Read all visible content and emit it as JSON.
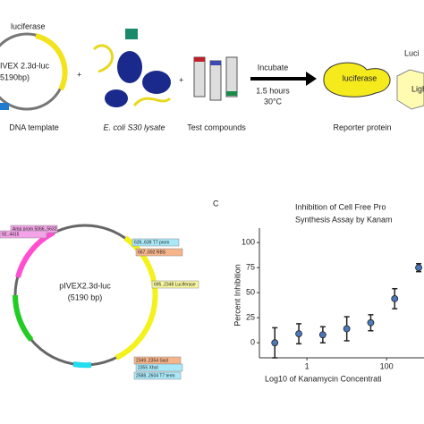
{
  "schematic": {
    "dna_label": "luciferase",
    "plasmid_name": "IVEX 2.3d-luc",
    "plasmid_size": "5190bp)",
    "dna_caption": "DNA template",
    "lysate_caption": "E. coli S30 lysate",
    "compounds_caption": "Test compounds",
    "step": "Incubate",
    "time": "1.5 hours",
    "temp": "30°C",
    "product": "luciferase",
    "product_caption": "Reporter protein",
    "substrate": "Luci",
    "light": "Ligh"
  },
  "plasmid_map": {
    "name": "pIVEX2.3d-luc",
    "size": "(5190 bp)",
    "features": [
      "Amp prom 5066..5632",
      "92..4415",
      "626..639 T7 prom",
      "667..692 RBS",
      "695..2348 Luciferase",
      "2349..2354 SacI",
      "2355 XhoI",
      "2588..2604 T7 term"
    ]
  },
  "chart_data": {
    "type": "scatter",
    "panel": "C",
    "title": [
      "Inhibition of Cell Free Pro",
      "Synthesis Assay by Kanam"
    ],
    "y_label": "Percent Inhibition",
    "x_label": "Log10 of Kanamycin Concentrati",
    "x": [
      0.156,
      0.625,
      2.5,
      10,
      40,
      160,
      640
    ],
    "values": [
      0,
      9,
      8,
      14,
      20,
      44,
      75
    ],
    "errors": [
      15,
      10,
      8,
      12,
      8,
      10,
      4
    ],
    "color": "#4a78b8",
    "x_log": true,
    "xlim": [
      0.064,
      870
    ],
    "ylim": [
      -15,
      110
    ],
    "xticks": [
      1,
      100
    ],
    "yticks": [
      0,
      25,
      50,
      75,
      100
    ]
  }
}
